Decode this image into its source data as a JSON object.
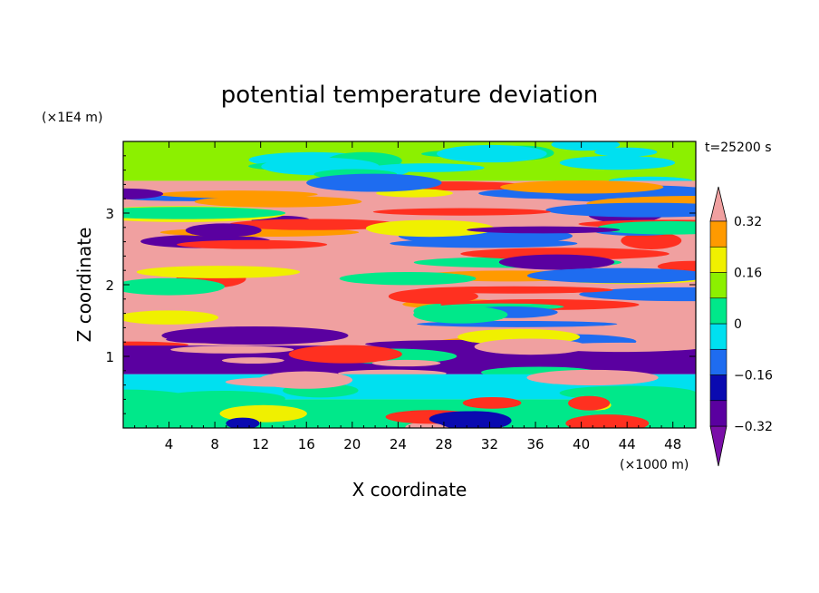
{
  "chart_data": {
    "type": "heatmap",
    "title": "potential temperature deviation",
    "xlabel": "X coordinate",
    "ylabel": "Z coordinate",
    "x_unit": "(×1000 m)",
    "y_unit": "(×1E4 m)",
    "time_label": "t=25200 s",
    "x_range": [
      0,
      50
    ],
    "y_range": [
      0,
      4
    ],
    "x_ticks": [
      "4",
      "8",
      "12",
      "16",
      "20",
      "24",
      "28",
      "32",
      "36",
      "40",
      "44",
      "48"
    ],
    "x_tick_values": [
      4,
      8,
      12,
      16,
      20,
      24,
      28,
      32,
      36,
      40,
      44,
      48
    ],
    "y_ticks": [
      "1",
      "2",
      "3"
    ],
    "y_tick_values": [
      1,
      2,
      3
    ],
    "colorbar": {
      "labels": [
        "0.32",
        "0.16",
        "0",
        "−0.16",
        "−0.32"
      ],
      "label_values": [
        0.32,
        0.16,
        0,
        -0.16,
        -0.32
      ],
      "levels": [
        -0.4,
        -0.32,
        -0.24,
        -0.16,
        -0.08,
        0,
        0.08,
        0.16,
        0.24,
        0.32,
        0.4
      ],
      "colors": [
        "#7a0fa8",
        "#5a00a0",
        "#0a0ab0",
        "#1e6cf0",
        "#00e0f0",
        "#00e88a",
        "#8cf000",
        "#f0f000",
        "#ff9a00",
        "#ff3020",
        "#f0a0a0"
      ]
    },
    "field": {
      "zones": [
        {
          "z": [
            3.45,
            4.0
          ],
          "colors": [
            "#8cf000",
            "#00e88a",
            "#00e0f0"
          ]
        },
        {
          "z": [
            1.15,
            3.45
          ],
          "colors": [
            "#f0a0a0",
            "#5a00a0",
            "#ff3020",
            "#ff9a00",
            "#f0f000",
            "#00e88a",
            "#1e6cf0"
          ]
        },
        {
          "z": [
            0.75,
            1.15
          ],
          "colors": [
            "#5a00a0",
            "#f0a0a0",
            "#00e88a",
            "#ff3020"
          ]
        },
        {
          "z": [
            0.4,
            0.75
          ],
          "colors": [
            "#00e0f0",
            "#00e88a",
            "#f0a0a0"
          ]
        },
        {
          "z": [
            0.0,
            0.4
          ],
          "colors": [
            "#00e88a",
            "#1e6cf0",
            "#f0f000",
            "#ff3020",
            "#0a0ab0",
            "#5a00a0",
            "#f0a0a0"
          ]
        }
      ]
    }
  }
}
